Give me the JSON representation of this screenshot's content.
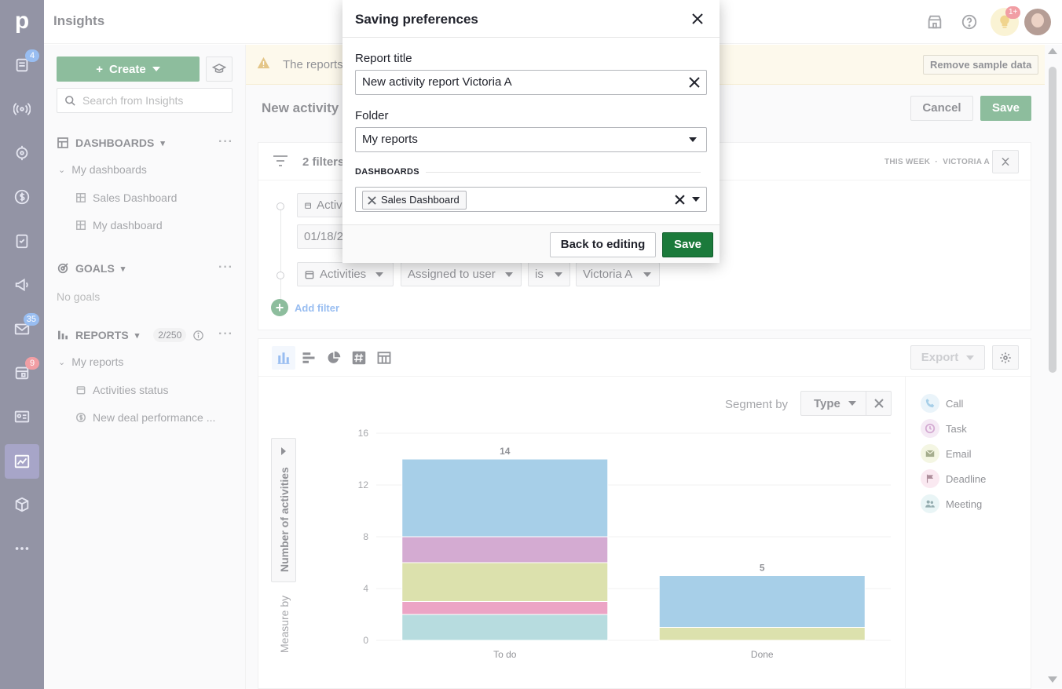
{
  "app": {
    "title": "Insights"
  },
  "rail": {
    "badges": {
      "leads": "4",
      "mail": "35",
      "calendar": "9"
    }
  },
  "topbar": {
    "bulb_badge": "1+"
  },
  "sidebar": {
    "create_label": "Create",
    "search_placeholder": "Search from Insights",
    "dashboards_header": "DASHBOARDS",
    "my_dashboards": "My dashboards",
    "dashboards": [
      "Sales Dashboard",
      "My dashboard"
    ],
    "goals_header": "GOALS",
    "no_goals": "No goals",
    "reports_header": "REPORTS",
    "reports_count": "2/250",
    "my_reports": "My reports",
    "reports": [
      "Activities status",
      "New deal performance ..."
    ]
  },
  "main": {
    "banner_text": "The reports",
    "remove_sample": "Remove sample data",
    "report_title": "New activity r",
    "cancel": "Cancel",
    "save": "Save",
    "filters": {
      "count": "2 filters",
      "period": "THIS WEEK",
      "user": "VICTORIA A",
      "row1_entity": "Activi",
      "row1_date": "01/18/2",
      "row2": {
        "entity": "Activities",
        "field": "Assigned to user",
        "operator": "is",
        "value": "Victoria A"
      },
      "add_filter": "Add filter"
    },
    "chart_toolbar": {
      "export": "Export"
    },
    "segment_label": "Segment by",
    "segment_value": "Type",
    "measure_label": "Number of activities",
    "measure_by": "Measure by",
    "legend": [
      {
        "label": "Call",
        "color": "#4f9fd1",
        "icon": "phone-icon"
      },
      {
        "label": "Task",
        "color": "#a856a5",
        "icon": "clock-icon"
      },
      {
        "label": "Email",
        "color": "#b8c25a",
        "icon": "email-icon"
      },
      {
        "label": "Deadline",
        "color": "#d9498a",
        "icon": "flag-icon"
      },
      {
        "label": "Meeting",
        "color": "#6fb8be",
        "icon": "people-icon"
      }
    ]
  },
  "chart_data": {
    "type": "bar",
    "stacked": true,
    "categories": [
      "To do",
      "Done"
    ],
    "series": [
      {
        "name": "Meeting",
        "color": "#6fb8be",
        "values": [
          2,
          0
        ]
      },
      {
        "name": "Deadline",
        "color": "#d9498a",
        "values": [
          1,
          0
        ]
      },
      {
        "name": "Email",
        "color": "#b8c25a",
        "values": [
          3,
          1
        ]
      },
      {
        "name": "Task",
        "color": "#a856a5",
        "values": [
          2,
          0
        ]
      },
      {
        "name": "Call",
        "color": "#4f9fd1",
        "values": [
          6,
          4
        ]
      }
    ],
    "totals": [
      14,
      5
    ],
    "ylabel": "Number of activities",
    "yticks": [
      0,
      4,
      8,
      12,
      16
    ],
    "ylim": [
      0,
      16
    ],
    "grid": true
  },
  "modal": {
    "title": "Saving preferences",
    "report_title_label": "Report title",
    "report_title_value": "New activity report Victoria A",
    "folder_label": "Folder",
    "folder_value": "My reports",
    "dashboards_label": "DASHBOARDS",
    "dashboard_tag": "Sales Dashboard",
    "back_button": "Back to editing",
    "save_button": "Save"
  },
  "colors": {
    "brand_green": "#1b7a3b",
    "rail": "#26294a",
    "link": "#317ae2"
  }
}
